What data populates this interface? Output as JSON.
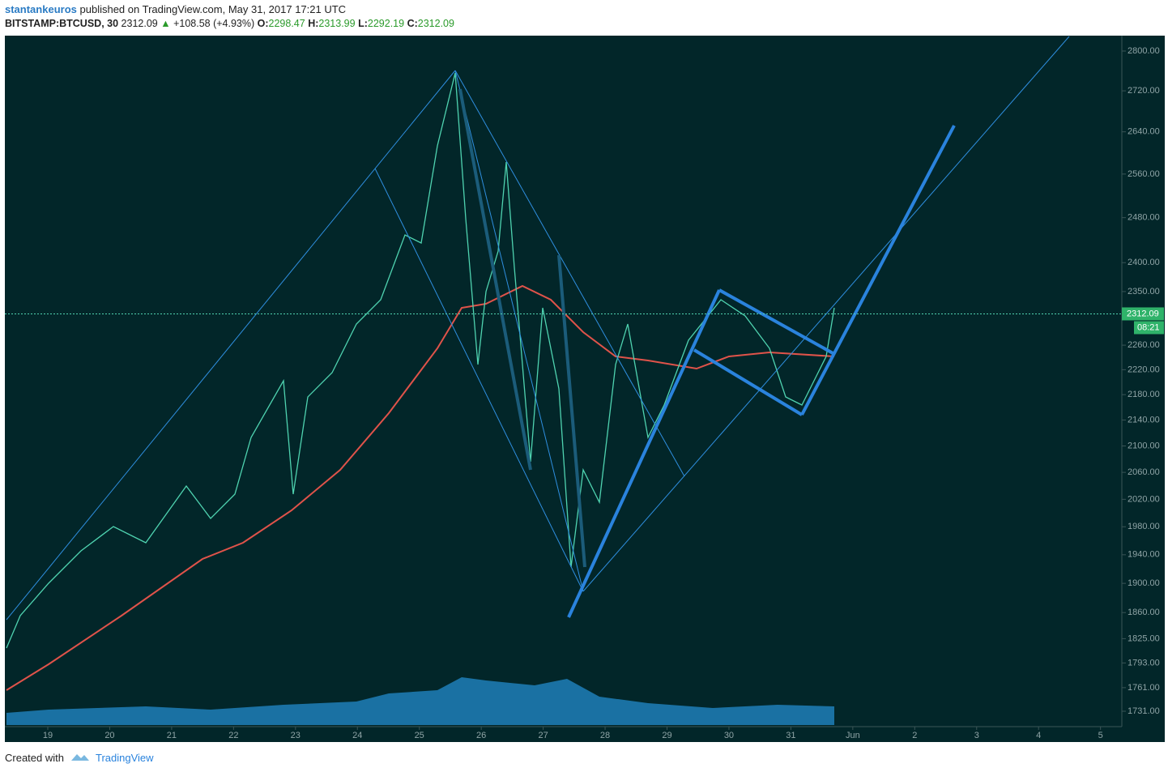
{
  "header": {
    "author": "stantankeuros",
    "published": "published on TradingView.com, May 31, 2017 17:21 UTC"
  },
  "quote": {
    "symbol": "BITSTAMP:BTCUSD, 30",
    "last": "2312.09",
    "arrow": "▲",
    "change": "+108.58 (+4.93%)",
    "open_label": "O:",
    "open": "2298.47",
    "high_label": "H:",
    "high": "2313.99",
    "low_label": "L:",
    "low": "2292.19",
    "close_label": "C:",
    "close": "2312.09"
  },
  "chart": {
    "log_scale": true,
    "yticks": [
      {
        "value": 2800,
        "label": "2800.00"
      },
      {
        "value": 2720,
        "label": "2720.00"
      },
      {
        "value": 2640,
        "label": "2640.00"
      },
      {
        "value": 2560,
        "label": "2560.00"
      },
      {
        "value": 2480,
        "label": "2480.00"
      },
      {
        "value": 2400,
        "label": "2400.00"
      },
      {
        "value": 2350,
        "label": "2350.00"
      },
      {
        "value": 2260,
        "label": "2260.00"
      },
      {
        "value": 2220,
        "label": "2220.00"
      },
      {
        "value": 2180,
        "label": "2180.00"
      },
      {
        "value": 2140,
        "label": "2140.00"
      },
      {
        "value": 2100,
        "label": "2100.00"
      },
      {
        "value": 2060,
        "label": "2060.00"
      },
      {
        "value": 2020,
        "label": "2020.00"
      },
      {
        "value": 1980,
        "label": "1980.00"
      },
      {
        "value": 1940,
        "label": "1940.00"
      },
      {
        "value": 1900,
        "label": "1900.00"
      },
      {
        "value": 1860,
        "label": "1860.00"
      },
      {
        "value": 1825,
        "label": "1825.00"
      },
      {
        "value": 1793,
        "label": "1793.00"
      },
      {
        "value": 1761,
        "label": "1761.00"
      },
      {
        "value": 1731,
        "label": "1731.00"
      }
    ],
    "xticks": [
      "19",
      "20",
      "21",
      "22",
      "23",
      "24",
      "25",
      "26",
      "27",
      "28",
      "29",
      "30",
      "31",
      "Jun",
      "2",
      "3",
      "4",
      "5"
    ],
    "last_price": {
      "value": 2312.09,
      "label": "2312.09"
    },
    "countdown": "08:21"
  },
  "footer": {
    "created": "Created with",
    "brand": "TradingView"
  }
}
